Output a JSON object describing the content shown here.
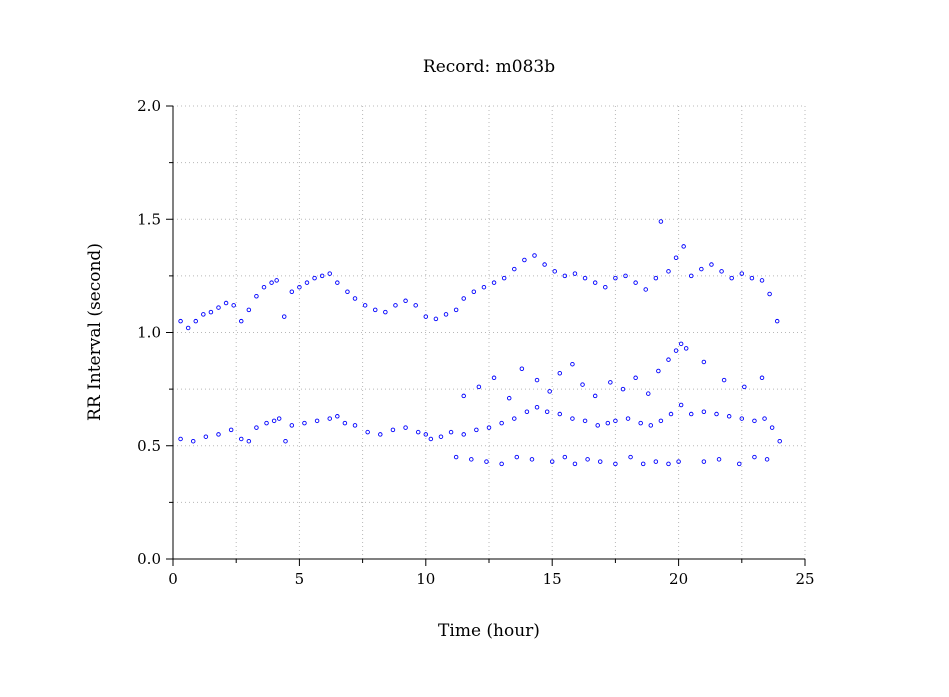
{
  "chart_data": {
    "type": "scatter",
    "title": "Record:  m083b",
    "xlabel": "Time (hour)",
    "ylabel": "RR Interval (second)",
    "xlim": [
      0,
      25
    ],
    "ylim": [
      0,
      2.0
    ],
    "xticks": [
      0,
      5,
      10,
      15,
      20,
      25
    ],
    "xtick_labels": [
      "0",
      "5",
      "10",
      "15",
      "20",
      "25"
    ],
    "xminor": [
      2.5,
      7.5,
      12.5,
      17.5,
      22.5
    ],
    "yticks": [
      0.0,
      0.5,
      1.0,
      1.5,
      2.0
    ],
    "ytick_labels": [
      "0.0",
      "0.5",
      "1.0",
      "1.5",
      "2.0"
    ],
    "yminor": [
      0.25,
      0.75,
      1.25,
      1.75
    ],
    "grid": true,
    "marker": "open-circle",
    "color": "#0000ff",
    "series": [
      {
        "role": "main-band",
        "x": [
          0.3,
          0.8,
          1.3,
          1.8,
          2.3,
          2.7,
          3.0,
          3.3,
          3.7,
          4.0,
          4.2,
          4.45,
          4.7,
          5.2,
          5.7,
          6.2,
          6.5,
          6.8,
          7.2,
          7.7,
          8.2,
          8.7,
          9.2,
          9.7,
          10.0,
          10.2,
          10.6,
          11.0,
          11.5,
          12.0,
          12.5,
          13.0,
          13.5,
          14.0,
          14.4,
          14.8,
          15.3,
          15.8,
          16.3,
          16.8,
          17.2,
          17.5,
          18.0,
          18.5,
          18.9,
          19.3,
          19.7,
          20.1,
          20.5,
          21.0,
          21.5,
          22.0,
          22.5,
          23.0,
          23.4,
          23.7,
          24.0
        ],
        "y": [
          0.53,
          0.52,
          0.54,
          0.55,
          0.57,
          0.53,
          0.52,
          0.58,
          0.6,
          0.61,
          0.62,
          0.52,
          0.59,
          0.6,
          0.61,
          0.62,
          0.63,
          0.6,
          0.59,
          0.56,
          0.55,
          0.57,
          0.58,
          0.56,
          0.55,
          0.53,
          0.54,
          0.56,
          0.55,
          0.57,
          0.58,
          0.6,
          0.62,
          0.65,
          0.67,
          0.65,
          0.64,
          0.62,
          0.61,
          0.59,
          0.6,
          0.61,
          0.62,
          0.6,
          0.59,
          0.61,
          0.64,
          0.68,
          0.64,
          0.65,
          0.64,
          0.63,
          0.62,
          0.61,
          0.62,
          0.58,
          0.52
        ]
      },
      {
        "role": "upper-cluster",
        "x": [
          0.3,
          0.6,
          0.9,
          1.2,
          1.5,
          1.8,
          2.1,
          2.4,
          2.7,
          3.0,
          3.3,
          3.6,
          3.9,
          4.1,
          4.4,
          4.7,
          5.0,
          5.3,
          5.6,
          5.9,
          6.2,
          6.5,
          6.9,
          7.2,
          7.6,
          8.0,
          8.4,
          8.8,
          9.2,
          9.6,
          10.0,
          10.4,
          10.8,
          11.2,
          11.5,
          11.9,
          12.3,
          12.7,
          13.1,
          13.5,
          13.9,
          14.3,
          14.7,
          15.1,
          15.5,
          15.9,
          16.3,
          16.7,
          17.1,
          17.5,
          17.9,
          18.3,
          18.7,
          19.1,
          19.3,
          19.6,
          19.9,
          20.2,
          20.5,
          20.9,
          21.3,
          21.7,
          22.1,
          22.5,
          22.9,
          23.3,
          23.6,
          23.9
        ],
        "y": [
          1.05,
          1.02,
          1.05,
          1.08,
          1.09,
          1.11,
          1.13,
          1.12,
          1.05,
          1.1,
          1.16,
          1.2,
          1.22,
          1.23,
          1.07,
          1.18,
          1.2,
          1.22,
          1.24,
          1.25,
          1.26,
          1.22,
          1.18,
          1.15,
          1.12,
          1.1,
          1.09,
          1.12,
          1.14,
          1.12,
          1.07,
          1.06,
          1.08,
          1.1,
          1.15,
          1.18,
          1.2,
          1.22,
          1.24,
          1.28,
          1.32,
          1.34,
          1.3,
          1.27,
          1.25,
          1.26,
          1.24,
          1.22,
          1.2,
          1.24,
          1.25,
          1.22,
          1.19,
          1.24,
          1.49,
          1.27,
          1.33,
          1.38,
          1.25,
          1.28,
          1.3,
          1.27,
          1.24,
          1.26,
          1.24,
          1.23,
          1.17,
          1.05
        ]
      },
      {
        "role": "lower-cluster",
        "x": [
          11.2,
          11.8,
          12.4,
          13.0,
          13.6,
          14.2,
          15.0,
          15.5,
          15.9,
          16.4,
          16.9,
          17.5,
          18.1,
          18.6,
          19.1,
          19.6,
          20.0,
          21.0,
          21.6,
          22.4,
          23.0,
          23.5
        ],
        "y": [
          0.45,
          0.44,
          0.43,
          0.42,
          0.45,
          0.44,
          0.43,
          0.45,
          0.42,
          0.44,
          0.43,
          0.42,
          0.45,
          0.42,
          0.43,
          0.42,
          0.43,
          0.43,
          0.44,
          0.42,
          0.45,
          0.44
        ]
      },
      {
        "role": "middle-scatter",
        "x": [
          11.5,
          12.1,
          12.7,
          13.3,
          13.8,
          14.4,
          14.9,
          15.3,
          15.8,
          16.2,
          16.7,
          17.3,
          17.8,
          18.3,
          18.8,
          19.2,
          19.6,
          19.9,
          20.1,
          20.3,
          21.0,
          21.8,
          22.6,
          23.3
        ],
        "y": [
          0.72,
          0.76,
          0.8,
          0.71,
          0.84,
          0.79,
          0.74,
          0.82,
          0.86,
          0.77,
          0.72,
          0.78,
          0.75,
          0.8,
          0.73,
          0.83,
          0.88,
          0.92,
          0.95,
          0.93,
          0.87,
          0.79,
          0.76,
          0.8
        ]
      }
    ]
  }
}
